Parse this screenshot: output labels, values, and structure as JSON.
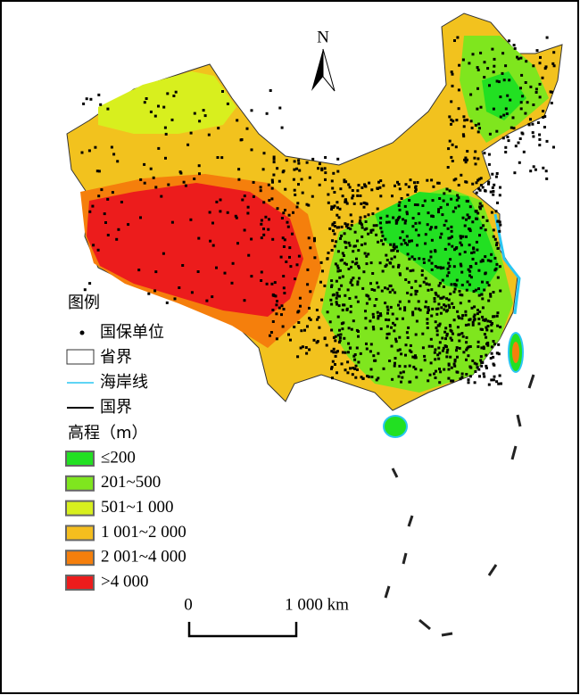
{
  "north": "N",
  "legend": {
    "title": "图例",
    "items": [
      {
        "label": "国保单位"
      },
      {
        "label": "省界"
      },
      {
        "label": "海岸线"
      },
      {
        "label": "国界"
      }
    ]
  },
  "elevation": {
    "title": "高程（m）",
    "classes": [
      {
        "label": "≤200",
        "color": "#22e022"
      },
      {
        "label": "201~500",
        "color": "#7fe61e"
      },
      {
        "label": "501~1 000",
        "color": "#d8ef1e"
      },
      {
        "label": "1 001~2 000",
        "color": "#f5be1e"
      },
      {
        "label": "2 001~4 000",
        "color": "#f57f0c"
      },
      {
        "label": ">4 000",
        "color": "#ec1c1c"
      }
    ]
  },
  "scale_bar": {
    "labels": [
      "0",
      "1 000 km"
    ]
  }
}
